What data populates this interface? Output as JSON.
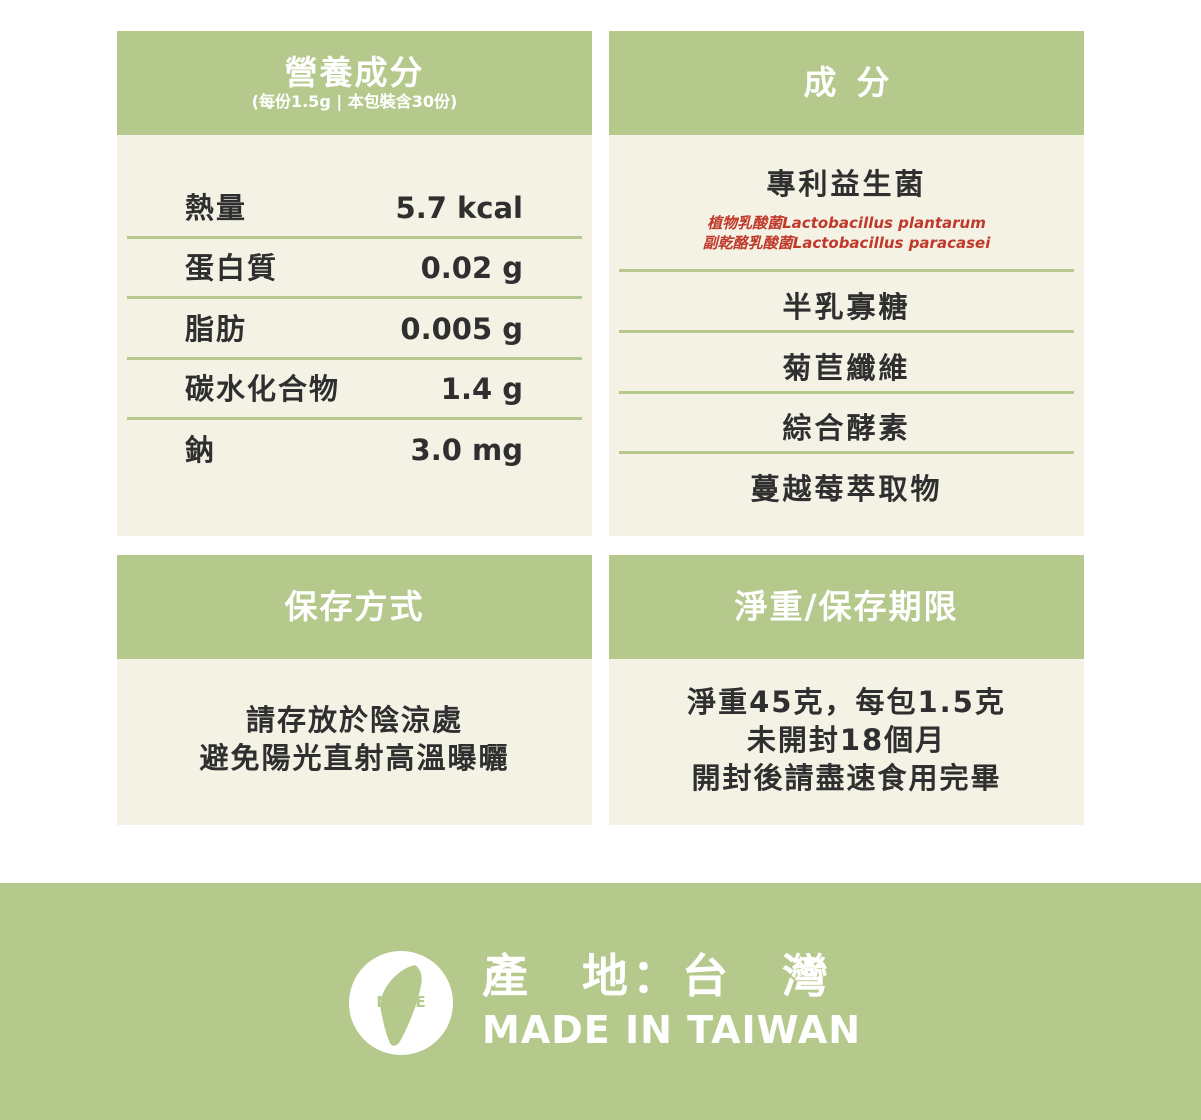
{
  "nutrition": {
    "title": "營養成分",
    "subtitle": "(每份1.5g | 本包裝含30份)",
    "rows": [
      {
        "label": "熱量",
        "value": "5.7 kcal"
      },
      {
        "label": "蛋白質",
        "value": "0.02 g"
      },
      {
        "label": "脂肪",
        "value": "0.005 g"
      },
      {
        "label": "碳水化合物",
        "value": "1.4 g"
      },
      {
        "label": "鈉",
        "value": "3.0 mg"
      }
    ]
  },
  "ingredients": {
    "title": "成分",
    "probiotics": {
      "name": "專利益生菌",
      "strains": [
        "植物乳酸菌Lactobacillus plantarum",
        "副乾酪乳酸菌Lactobacillus paracasei"
      ]
    },
    "items": [
      "半乳寡糖",
      "菊苣纖維",
      "綜合酵素",
      "蔓越莓萃取物"
    ]
  },
  "storage": {
    "title": "保存方式",
    "lines": [
      "請存放於陰涼處",
      "避免陽光直射高溫曝曬"
    ]
  },
  "net_weight": {
    "title": "淨重/保存期限",
    "lines": [
      "淨重45克，每包1.5克",
      "未開封18個月",
      "開封後請盡速食用完畢"
    ]
  },
  "origin": {
    "badge_text": "MADE",
    "chinese": "產　地：台　灣",
    "english": "MADE IN TAIWAN"
  },
  "colors": {
    "accent_green": "#b6c98c",
    "panel_bg": "#f3f2e4",
    "strain_red": "#c0392b"
  }
}
